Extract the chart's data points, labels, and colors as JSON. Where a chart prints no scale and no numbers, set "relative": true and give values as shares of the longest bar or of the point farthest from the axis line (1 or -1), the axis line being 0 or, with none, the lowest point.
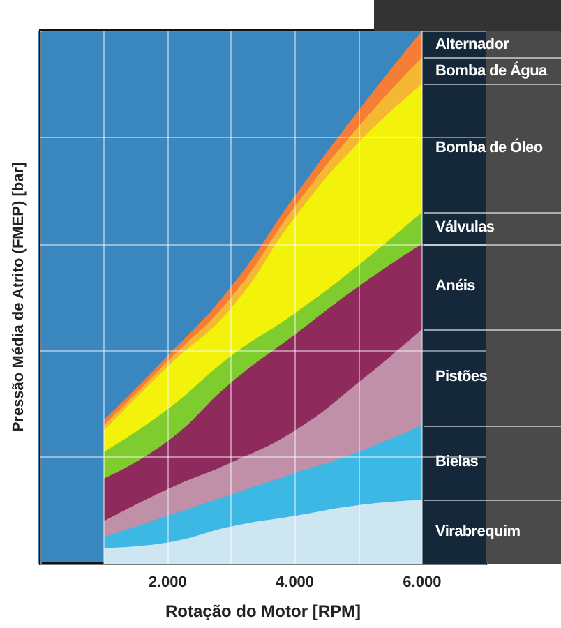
{
  "chart_data": {
    "type": "area",
    "stacked": true,
    "relative": true,
    "xlabel": "Rotação do Motor [RPM]",
    "ylabel": "Pressão Média de Atrito (FMEP) [bar]",
    "x": [
      1000,
      2000,
      3000,
      4000,
      5000,
      6000
    ],
    "xlim": [
      0,
      7000
    ],
    "xticks": [
      {
        "value": 1000,
        "label": null
      },
      {
        "value": 2000,
        "label": "2.000"
      },
      {
        "value": 3000,
        "label": null
      },
      {
        "value": 4000,
        "label": "4.000"
      },
      {
        "value": 5000,
        "label": null
      },
      {
        "value": 6000,
        "label": "6.000"
      }
    ],
    "grid": true,
    "legend": "right",
    "bands": [
      {
        "axis": "x",
        "from": 6000,
        "to": 7000,
        "color": "#14283a"
      }
    ],
    "series": [
      {
        "name": "Virabrequim",
        "color": "#cde6f2",
        "values": [
          0.03,
          0.04,
          0.07,
          0.09,
          0.11,
          0.12
        ]
      },
      {
        "name": "Bielas",
        "color": "#3db7e4",
        "values": [
          0.02,
          0.05,
          0.06,
          0.08,
          0.1,
          0.14
        ]
      },
      {
        "name": "Pistões",
        "color": "#c090a8",
        "values": [
          0.03,
          0.05,
          0.06,
          0.08,
          0.13,
          0.18
        ]
      },
      {
        "name": "Anéis",
        "color": "#8e2a5c",
        "values": [
          0.08,
          0.09,
          0.15,
          0.18,
          0.18,
          0.16
        ]
      },
      {
        "name": "Válvulas",
        "color": "#7fcc2e",
        "values": [
          0.05,
          0.06,
          0.05,
          0.04,
          0.04,
          0.06
        ]
      },
      {
        "name": "Bomba de Óleo",
        "color": "#f2f20a",
        "values": [
          0.04,
          0.08,
          0.09,
          0.18,
          0.23,
          0.24
        ]
      },
      {
        "name": "Bomba de Água",
        "color": "#f5b833",
        "values": [
          0.01,
          0.01,
          0.02,
          0.02,
          0.03,
          0.05
        ]
      },
      {
        "name": "Alternador",
        "color": "#f57d35",
        "values": [
          0.01,
          0.01,
          0.02,
          0.02,
          0.03,
          0.05
        ]
      }
    ]
  }
}
